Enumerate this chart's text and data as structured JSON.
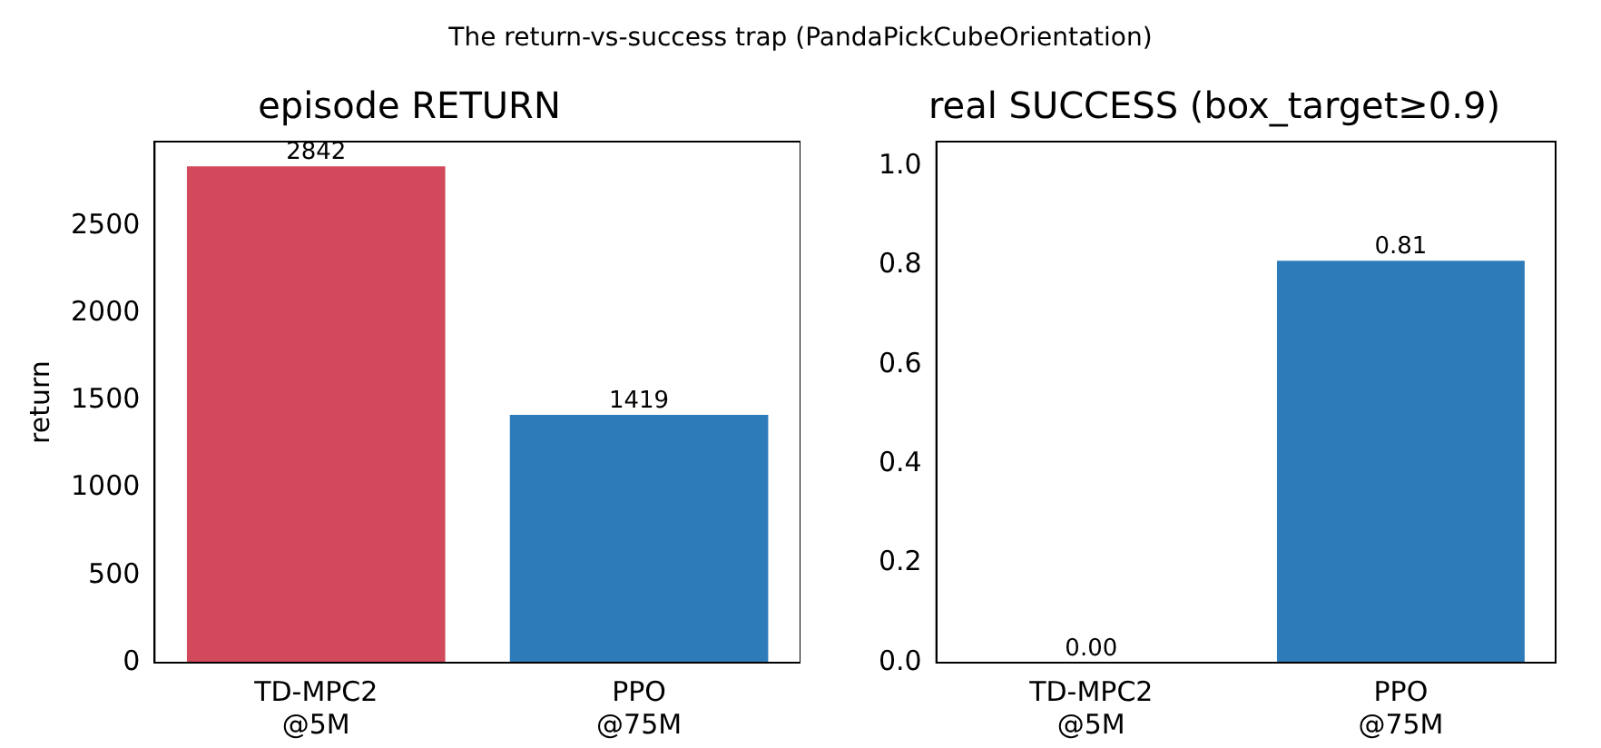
{
  "chart_data": [
    {
      "type": "bar",
      "title": "episode RETURN",
      "ylabel": "return",
      "annotations": [
        "The return-vs-success trap (PandaPickCubeOrientation)"
      ],
      "categories": [
        "TD-MPC2\n@5M",
        "PPO\n@75M"
      ],
      "values": [
        2842,
        1419
      ],
      "colors": [
        "#d1495b",
        "#2e7bba"
      ],
      "ylim": [
        0,
        2984
      ],
      "yticks": [
        0,
        500,
        1000,
        1500,
        2000,
        2500
      ],
      "data_labels": true,
      "grid": false,
      "legend": false
    },
    {
      "type": "bar",
      "title": "real SUCCESS (box_target≥0.9)",
      "categories": [
        "TD-MPC2\n@5M",
        "PPO\n@75M"
      ],
      "values": [
        0,
        0.81
      ],
      "value_labels": [
        "0.00",
        "0.81"
      ],
      "colors": [
        "#d1495b",
        "#2e7bba"
      ],
      "ylim": [
        0,
        1.05
      ],
      "yticks": [
        {
          "value": 0,
          "label": "0.0"
        },
        0.2,
        0.4,
        0.6,
        0.8,
        {
          "value": 1,
          "label": "1.0"
        }
      ],
      "grid": false,
      "legend": false
    }
  ]
}
